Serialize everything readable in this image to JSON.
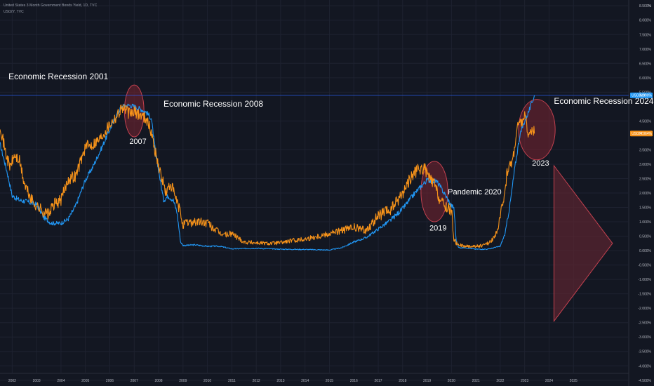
{
  "header": {
    "title": "United States 3 Month Government Bonds Yield, 1D, TVC",
    "subtitle": "US02Y, TVC"
  },
  "colors": {
    "background": "#131722",
    "grid": "#1e2230",
    "axis_text": "#b2b5be",
    "series_3m": "#2196f3",
    "series_2y": "#f7931a",
    "circle_fill": "#7a2432",
    "circle_stroke": "#c2414f",
    "triangle_fill": "#5c2530",
    "triangle_stroke": "#c2414f",
    "hline": "#2962ff"
  },
  "chart_data": {
    "type": "line",
    "title": "United States 3 Month Government Bonds Yield, 1D, TVC",
    "ylim": [
      -4.7,
      8.7
    ],
    "xlim": [
      2001.5,
      2028.3
    ],
    "y_ticks": [
      {
        "value": 8.5,
        "label": "8.500%"
      },
      {
        "value": 8.0,
        "label": "8.000%"
      },
      {
        "value": 7.5,
        "label": "7.500%"
      },
      {
        "value": 7.0,
        "label": "7.000%"
      },
      {
        "value": 6.5,
        "label": "6.500%"
      },
      {
        "value": 6.0,
        "label": "6.000%"
      },
      {
        "value": 5.5,
        "label": "5.500%"
      },
      {
        "value": 4.5,
        "label": "4.500%"
      },
      {
        "value": 3.5,
        "label": "3.500%"
      },
      {
        "value": 3.0,
        "label": "3.000%"
      },
      {
        "value": 2.5,
        "label": "2.500%"
      },
      {
        "value": 2.0,
        "label": "2.000%"
      },
      {
        "value": 1.5,
        "label": "1.500%"
      },
      {
        "value": 1.0,
        "label": "1.000%"
      },
      {
        "value": 0.5,
        "label": "0.500%"
      },
      {
        "value": 0.0,
        "label": "0.000%"
      },
      {
        "value": -0.5,
        "label": "-0.500%"
      },
      {
        "value": -1.0,
        "label": "-1.000%"
      },
      {
        "value": -1.5,
        "label": "-1.500%"
      },
      {
        "value": -2.0,
        "label": "-2.000%"
      },
      {
        "value": -2.5,
        "label": "-2.500%"
      },
      {
        "value": -3.0,
        "label": "-3.000%"
      },
      {
        "value": -3.5,
        "label": "-3.500%"
      },
      {
        "value": -4.0,
        "label": "-4.000%"
      },
      {
        "value": -4.5,
        "label": "-4.500%"
      }
    ],
    "y_top_label": "%",
    "x_ticks": [
      {
        "value": 2002,
        "label": "2002"
      },
      {
        "value": 2003,
        "label": "2003"
      },
      {
        "value": 2004,
        "label": "2004"
      },
      {
        "value": 2005,
        "label": "2005"
      },
      {
        "value": 2006,
        "label": "2006"
      },
      {
        "value": 2007,
        "label": "2007"
      },
      {
        "value": 2008,
        "label": "2008"
      },
      {
        "value": 2009,
        "label": "2009"
      },
      {
        "value": 2010,
        "label": "2010"
      },
      {
        "value": 2011,
        "label": "2011"
      },
      {
        "value": 2012,
        "label": "2012"
      },
      {
        "value": 2013,
        "label": "2013"
      },
      {
        "value": 2014,
        "label": "2014"
      },
      {
        "value": 2015,
        "label": "2015"
      },
      {
        "value": 2016,
        "label": "2016"
      },
      {
        "value": 2017,
        "label": "2017"
      },
      {
        "value": 2018,
        "label": "2018"
      },
      {
        "value": 2019,
        "label": "2019"
      },
      {
        "value": 2020,
        "label": "2020"
      },
      {
        "value": 2021,
        "label": "2021"
      },
      {
        "value": 2022,
        "label": "2022"
      },
      {
        "value": 2023,
        "label": "2023"
      },
      {
        "value": 2024,
        "label": "2024"
      },
      {
        "value": 2025,
        "label": "2025"
      }
    ],
    "series": [
      {
        "name": "US03MY",
        "color": "#2196f3",
        "last_value_label": "5.390%",
        "last_value": 5.39,
        "x": [
          2001.5,
          2001.8,
          2002.0,
          2002.3,
          2002.6,
          2003.0,
          2003.3,
          2003.6,
          2004.0,
          2004.3,
          2004.6,
          2005.0,
          2005.3,
          2005.6,
          2006.0,
          2006.3,
          2006.5,
          2006.8,
          2007.0,
          2007.3,
          2007.5,
          2007.7,
          2007.8,
          2007.9,
          2008.0,
          2008.2,
          2008.4,
          2008.6,
          2008.75,
          2008.9,
          2009.0,
          2009.5,
          2010.0,
          2010.5,
          2011.0,
          2012.0,
          2013.0,
          2014.0,
          2015.0,
          2015.5,
          2016.0,
          2016.5,
          2017.0,
          2017.5,
          2018.0,
          2018.5,
          2019.0,
          2019.4,
          2019.7,
          2020.0,
          2020.1,
          2020.2,
          2020.3,
          2020.6,
          2021.0,
          2021.5,
          2022.0,
          2022.2,
          2022.4,
          2022.6,
          2022.8,
          2023.0,
          2023.2,
          2023.4
        ],
        "y": [
          3.7,
          2.7,
          1.9,
          1.75,
          1.7,
          1.6,
          1.15,
          0.95,
          0.95,
          1.1,
          1.55,
          2.45,
          2.9,
          3.45,
          4.2,
          4.75,
          5.0,
          5.05,
          5.0,
          4.9,
          4.8,
          4.6,
          3.9,
          3.2,
          2.8,
          1.75,
          1.9,
          1.75,
          1.35,
          0.3,
          0.18,
          0.2,
          0.15,
          0.15,
          0.06,
          0.08,
          0.05,
          0.04,
          0.02,
          0.1,
          0.3,
          0.45,
          0.75,
          1.05,
          1.45,
          2.0,
          2.45,
          2.4,
          2.0,
          1.55,
          1.5,
          0.3,
          0.1,
          0.1,
          0.05,
          0.05,
          0.15,
          0.6,
          1.6,
          2.9,
          4.0,
          4.5,
          4.9,
          5.39
        ]
      },
      {
        "name": "US02Y",
        "color": "#f7931a",
        "last_value_label": "4.064%",
        "last_value": 4.064,
        "x": [
          2001.5,
          2001.7,
          2001.9,
          2002.1,
          2002.3,
          2002.5,
          2002.8,
          2003.0,
          2003.3,
          2003.5,
          2003.7,
          2004.0,
          2004.3,
          2004.6,
          2005.0,
          2005.3,
          2005.6,
          2006.0,
          2006.3,
          2006.5,
          2006.8,
          2007.0,
          2007.3,
          2007.5,
          2007.7,
          2007.9,
          2008.1,
          2008.3,
          2008.5,
          2008.7,
          2008.9,
          2009.0,
          2009.3,
          2009.6,
          2010.0,
          2010.5,
          2010.8,
          2011.0,
          2011.5,
          2011.9,
          2012.5,
          2013.0,
          2013.5,
          2014.0,
          2014.5,
          2015.0,
          2015.5,
          2016.0,
          2016.5,
          2017.0,
          2017.5,
          2018.0,
          2018.3,
          2018.6,
          2018.9,
          2019.1,
          2019.3,
          2019.5,
          2019.7,
          2020.0,
          2020.1,
          2020.2,
          2020.5,
          2021.0,
          2021.3,
          2021.6,
          2021.9,
          2022.1,
          2022.3,
          2022.5,
          2022.7,
          2022.9,
          2023.0,
          2023.1,
          2023.2,
          2023.3,
          2023.4
        ],
        "y": [
          4.4,
          3.5,
          2.9,
          3.3,
          3.1,
          2.3,
          1.75,
          1.55,
          1.35,
          1.25,
          1.6,
          1.75,
          2.5,
          2.6,
          3.6,
          3.7,
          3.9,
          4.4,
          4.7,
          5.0,
          4.75,
          4.8,
          4.7,
          4.6,
          4.1,
          3.3,
          2.6,
          2.0,
          2.3,
          1.8,
          1.3,
          0.9,
          1.0,
          1.0,
          0.95,
          0.6,
          0.55,
          0.6,
          0.3,
          0.28,
          0.25,
          0.28,
          0.35,
          0.4,
          0.5,
          0.6,
          0.7,
          0.8,
          0.7,
          1.2,
          1.4,
          2.0,
          2.5,
          2.8,
          2.85,
          2.5,
          2.3,
          1.8,
          1.55,
          1.4,
          0.4,
          0.25,
          0.15,
          0.15,
          0.18,
          0.3,
          0.7,
          1.6,
          2.8,
          3.1,
          4.3,
          4.5,
          4.7,
          4.2,
          4.0,
          4.3,
          4.064
        ]
      }
    ],
    "hlines": [
      {
        "value": 5.39
      }
    ],
    "circles": [
      {
        "label": "2007",
        "cx": 2007.0,
        "cy": 4.85,
        "rx": 0.4,
        "ry": 0.9
      },
      {
        "label": "2019",
        "cx": 2019.3,
        "cy": 2.05,
        "rx": 0.55,
        "ry": 1.05
      },
      {
        "label": "2023",
        "cx": 2023.5,
        "cy": 4.2,
        "rx": 0.75,
        "ry": 1.05
      }
    ],
    "annotations": [
      {
        "text": "Economic Recession 2001",
        "x": 2001.85,
        "y": 5.95,
        "size": 12
      },
      {
        "text": "Economic Recession 2008",
        "x": 2008.2,
        "y": 5.0,
        "size": 12
      },
      {
        "text": "Economic Recession 2024",
        "x": 2024.2,
        "y": 5.1,
        "size": 12
      },
      {
        "text": "Pandemic 2020",
        "x": 2019.85,
        "y": 1.95,
        "size": 11
      },
      {
        "text": "2007",
        "x": 2006.8,
        "y": 3.7,
        "size": 11
      },
      {
        "text": "2019",
        "x": 2019.1,
        "y": 0.7,
        "size": 11
      },
      {
        "text": "2023",
        "x": 2023.3,
        "y": 2.95,
        "size": 11
      }
    ],
    "triangle": {
      "points": [
        [
          2024.2,
          2.95
        ],
        [
          2026.6,
          0.25
        ],
        [
          2024.2,
          -2.45
        ]
      ]
    }
  }
}
